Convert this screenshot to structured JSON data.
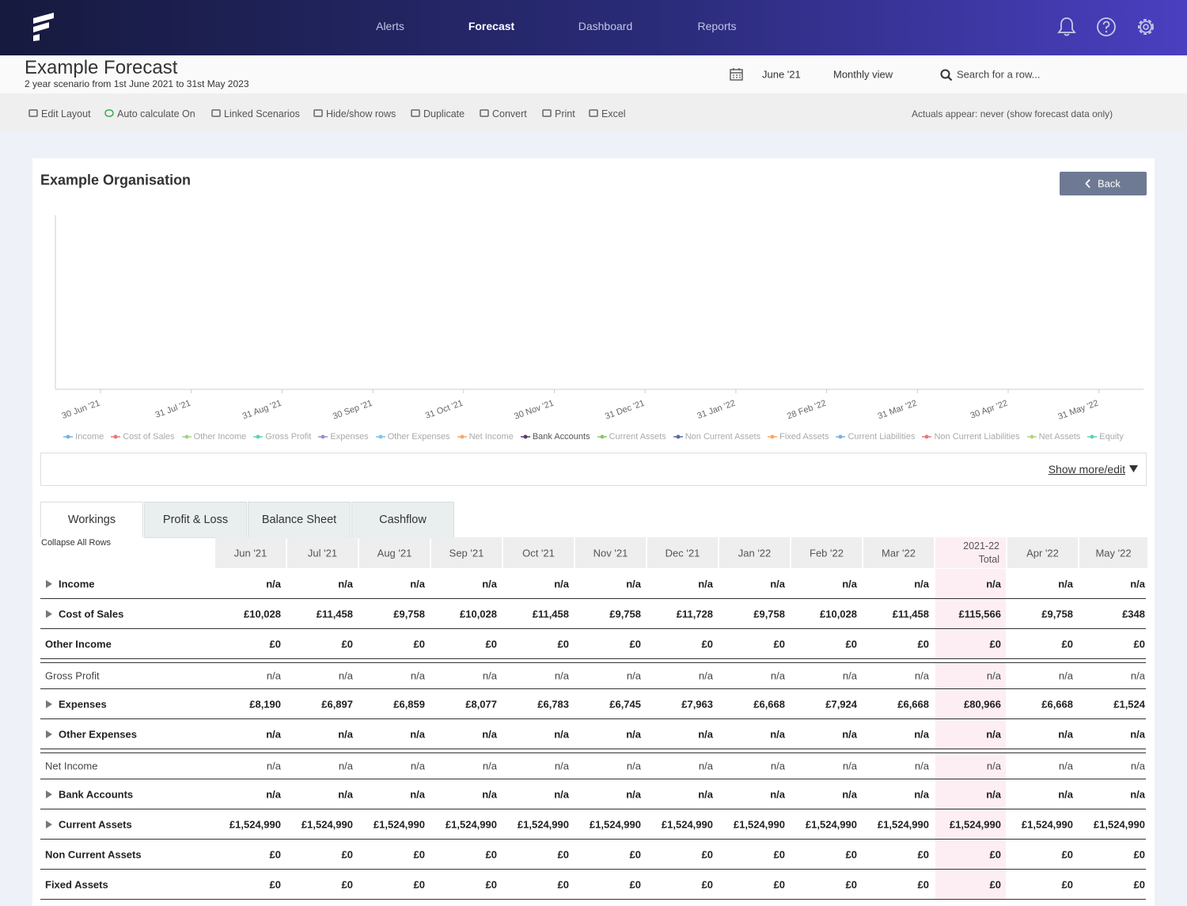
{
  "nav": {
    "links": [
      "Alerts",
      "Forecast",
      "Dashboard",
      "Reports"
    ],
    "active": 1
  },
  "header": {
    "title": "Example Forecast",
    "subtitle": "2 year scenario from 1st June 2021 to 31st May 2023",
    "date": "June '21",
    "view": "Monthly view",
    "search_placeholder": "Search for a row..."
  },
  "toolbar": {
    "items": [
      "Edit Layout",
      "Auto calculate On",
      "Linked Scenarios",
      "Hide/show rows",
      "Duplicate",
      "Convert",
      "Print",
      "Excel"
    ],
    "actuals_note": "Actuals appear: never (show forecast data only)"
  },
  "card": {
    "title": "Example Organisation",
    "back": "Back",
    "show_more": "Show more/edit"
  },
  "chart": {
    "x_labels": [
      "30 Jun '21",
      "31 Jul '21",
      "31 Aug '21",
      "30 Sep '21",
      "31 Oct '21",
      "30 Nov '21",
      "31 Dec '21",
      "31 Jan '22",
      "28 Feb '22",
      "31 Mar '22",
      "30 Apr '22",
      "31 May '22"
    ],
    "legend": [
      {
        "name": "Income",
        "color": "#7ab0e0"
      },
      {
        "name": "Cost of Sales",
        "color": "#e87878"
      },
      {
        "name": "Other Income",
        "color": "#a8d08d"
      },
      {
        "name": "Gross Profit",
        "color": "#5fd0b8"
      },
      {
        "name": "Expenses",
        "color": "#9b8ec9"
      },
      {
        "name": "Other Expenses",
        "color": "#7ac6e8"
      },
      {
        "name": "Net Income",
        "color": "#f5a86a"
      },
      {
        "name": "Bank Accounts",
        "color": "#5c3a6b",
        "active": true
      },
      {
        "name": "Current Assets",
        "color": "#8fc46a"
      },
      {
        "name": "Non Current Assets",
        "color": "#5a6aa8"
      },
      {
        "name": "Fixed Assets",
        "color": "#f5a86a"
      },
      {
        "name": "Current Liabilities",
        "color": "#7ab0e0"
      },
      {
        "name": "Non Current Liabilities",
        "color": "#e87878"
      },
      {
        "name": "Net Assets",
        "color": "#b5d67a"
      },
      {
        "name": "Equity",
        "color": "#5fd0b8"
      }
    ]
  },
  "tabs": {
    "items": [
      "Workings",
      "Profit & Loss",
      "Balance Sheet",
      "Cashflow"
    ],
    "active": 0
  },
  "table": {
    "collapse": "Collapse All Rows",
    "total_column": 10,
    "columns": [
      "Jun '21",
      "Jul '21",
      "Aug '21",
      "Sep '21",
      "Oct '21",
      "Nov '21",
      "Dec '21",
      "Jan '22",
      "Feb '22",
      "Mar '22",
      "2021-22 Total",
      "Apr '22",
      "May '22"
    ],
    "rows": [
      {
        "label": "Income",
        "expandable": true,
        "style": "bold",
        "values": [
          "n/a",
          "n/a",
          "n/a",
          "n/a",
          "n/a",
          "n/a",
          "n/a",
          "n/a",
          "n/a",
          "n/a",
          "n/a",
          "n/a",
          "n/a"
        ]
      },
      {
        "label": "Cost of Sales",
        "expandable": true,
        "style": "bold",
        "values": [
          "£10,028",
          "£11,458",
          "£9,758",
          "£10,028",
          "£11,458",
          "£9,758",
          "£11,728",
          "£9,758",
          "£10,028",
          "£11,458",
          "£115,566",
          "£9,758",
          "£348"
        ]
      },
      {
        "label": "Other Income",
        "expandable": false,
        "style": "bold",
        "values": [
          "£0",
          "£0",
          "£0",
          "£0",
          "£0",
          "£0",
          "£0",
          "£0",
          "£0",
          "£0",
          "£0",
          "£0",
          "£0"
        ]
      },
      {
        "label": "Gross Profit",
        "expandable": false,
        "style": "normal",
        "values": [
          "n/a",
          "n/a",
          "n/a",
          "n/a",
          "n/a",
          "n/a",
          "n/a",
          "n/a",
          "n/a",
          "n/a",
          "n/a",
          "n/a",
          "n/a"
        ]
      },
      {
        "label": "Expenses",
        "expandable": true,
        "style": "bold",
        "values": [
          "£8,190",
          "£6,897",
          "£6,859",
          "£8,077",
          "£6,783",
          "£6,745",
          "£7,963",
          "£6,668",
          "£7,924",
          "£6,668",
          "£80,966",
          "£6,668",
          "£1,524"
        ]
      },
      {
        "label": "Other Expenses",
        "expandable": true,
        "style": "bold",
        "values": [
          "n/a",
          "n/a",
          "n/a",
          "n/a",
          "n/a",
          "n/a",
          "n/a",
          "n/a",
          "n/a",
          "n/a",
          "n/a",
          "n/a",
          "n/a"
        ]
      },
      {
        "label": "Net Income",
        "expandable": false,
        "style": "normal",
        "values": [
          "n/a",
          "n/a",
          "n/a",
          "n/a",
          "n/a",
          "n/a",
          "n/a",
          "n/a",
          "n/a",
          "n/a",
          "n/a",
          "n/a",
          "n/a"
        ]
      },
      {
        "label": "Bank Accounts",
        "expandable": true,
        "style": "bold",
        "values": [
          "n/a",
          "n/a",
          "n/a",
          "n/a",
          "n/a",
          "n/a",
          "n/a",
          "n/a",
          "n/a",
          "n/a",
          "n/a",
          "n/a",
          "n/a"
        ]
      },
      {
        "label": "Current Assets",
        "expandable": true,
        "style": "bold",
        "values": [
          "£1,524,990",
          "£1,524,990",
          "£1,524,990",
          "£1,524,990",
          "£1,524,990",
          "£1,524,990",
          "£1,524,990",
          "£1,524,990",
          "£1,524,990",
          "£1,524,990",
          "£1,524,990",
          "£1,524,990",
          "£1,524,990"
        ]
      },
      {
        "label": "Non Current Assets",
        "expandable": false,
        "style": "bold",
        "values": [
          "£0",
          "£0",
          "£0",
          "£0",
          "£0",
          "£0",
          "£0",
          "£0",
          "£0",
          "£0",
          "£0",
          "£0",
          "£0"
        ]
      },
      {
        "label": "Fixed Assets",
        "expandable": false,
        "style": "bold",
        "values": [
          "£0",
          "£0",
          "£0",
          "£0",
          "£0",
          "£0",
          "£0",
          "£0",
          "£0",
          "£0",
          "£0",
          "£0",
          "£0"
        ]
      }
    ]
  }
}
